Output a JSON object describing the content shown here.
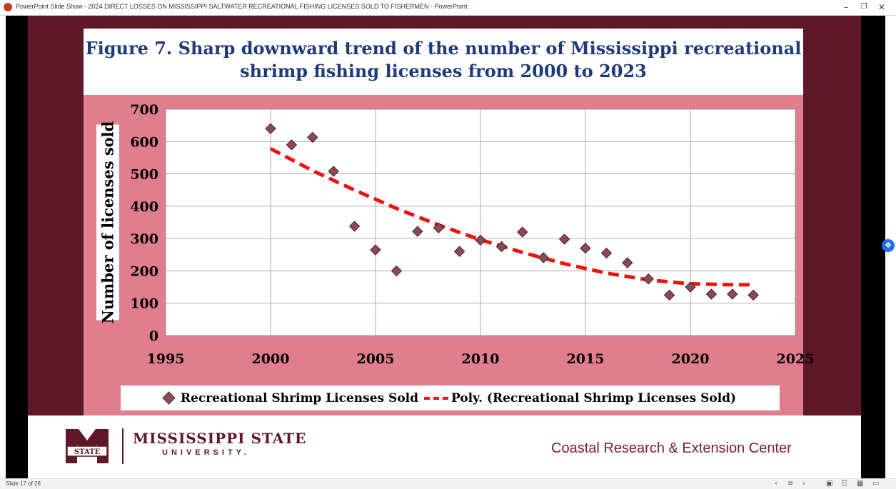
{
  "window": {
    "title": "PowerPoint Slide Show  -  2024 DIRECT LOSSES ON MISSISSIPPI SALTWATER RECREATIONAL FISHING LICENSES SOLD TO FISHERMEN - PowerPoint",
    "minimize_icon": "minimize-icon",
    "restore_icon": "restore-icon",
    "close_icon": "close-icon"
  },
  "chart_data": {
    "type": "scatter",
    "title": "Figure 7. Sharp downward trend of the number of Mississippi recreational shrimp fishing licenses from 2000 to 2023",
    "title_lines": [
      "Figure 7. Sharp downward trend of the number of Mississippi recreational",
      "shrimp fishing licenses from 2000 to 2023"
    ],
    "ylabel": "Number of licenses sold",
    "xlabel": "",
    "xlim": [
      1995,
      2025
    ],
    "ylim": [
      0,
      700
    ],
    "x_ticks": [
      1995,
      2000,
      2005,
      2010,
      2015,
      2020,
      2025
    ],
    "y_ticks": [
      0,
      100,
      200,
      300,
      400,
      500,
      600,
      700
    ],
    "grid": "horizontal and vertical",
    "legend_position": "bottom",
    "series": [
      {
        "name": "Recreational Shrimp Licenses Sold",
        "marker": "diamond",
        "color": "#8a4a55",
        "x": [
          2000,
          2001,
          2002,
          2003,
          2004,
          2005,
          2006,
          2007,
          2008,
          2009,
          2010,
          2011,
          2012,
          2013,
          2014,
          2015,
          2016,
          2017,
          2018,
          2019,
          2020,
          2021,
          2022,
          2023
        ],
        "y": [
          640,
          590,
          613,
          508,
          338,
          265,
          200,
          322,
          333,
          260,
          295,
          275,
          320,
          241,
          298,
          270,
          255,
          225,
          175,
          125,
          150,
          128,
          128,
          125
        ]
      },
      {
        "name": "Poly. (Recreational Shrimp Licenses Sold)",
        "style": "dashed",
        "color": "#ee1111",
        "x": [
          2000,
          2002,
          2004,
          2006,
          2008,
          2010,
          2012,
          2014,
          2016,
          2018,
          2020,
          2022,
          2023
        ],
        "y": [
          578,
          510,
          450,
          393,
          342,
          296,
          257,
          222,
          193,
          172,
          160,
          157,
          157
        ]
      }
    ]
  },
  "footer": {
    "university": "MISSISSIPPI STATE",
    "university_sub": "UNIVERSITY.",
    "logo_text": "STATE",
    "center": "Coastal Research & Extension Center"
  },
  "statusbar": {
    "slide_counter": "Slide 17 of 28"
  },
  "colors": {
    "slide_background": "#5e1828",
    "chart_panel": "#e07e8e",
    "title_text": "#1f3a7a",
    "trend_line": "#ee1111"
  }
}
